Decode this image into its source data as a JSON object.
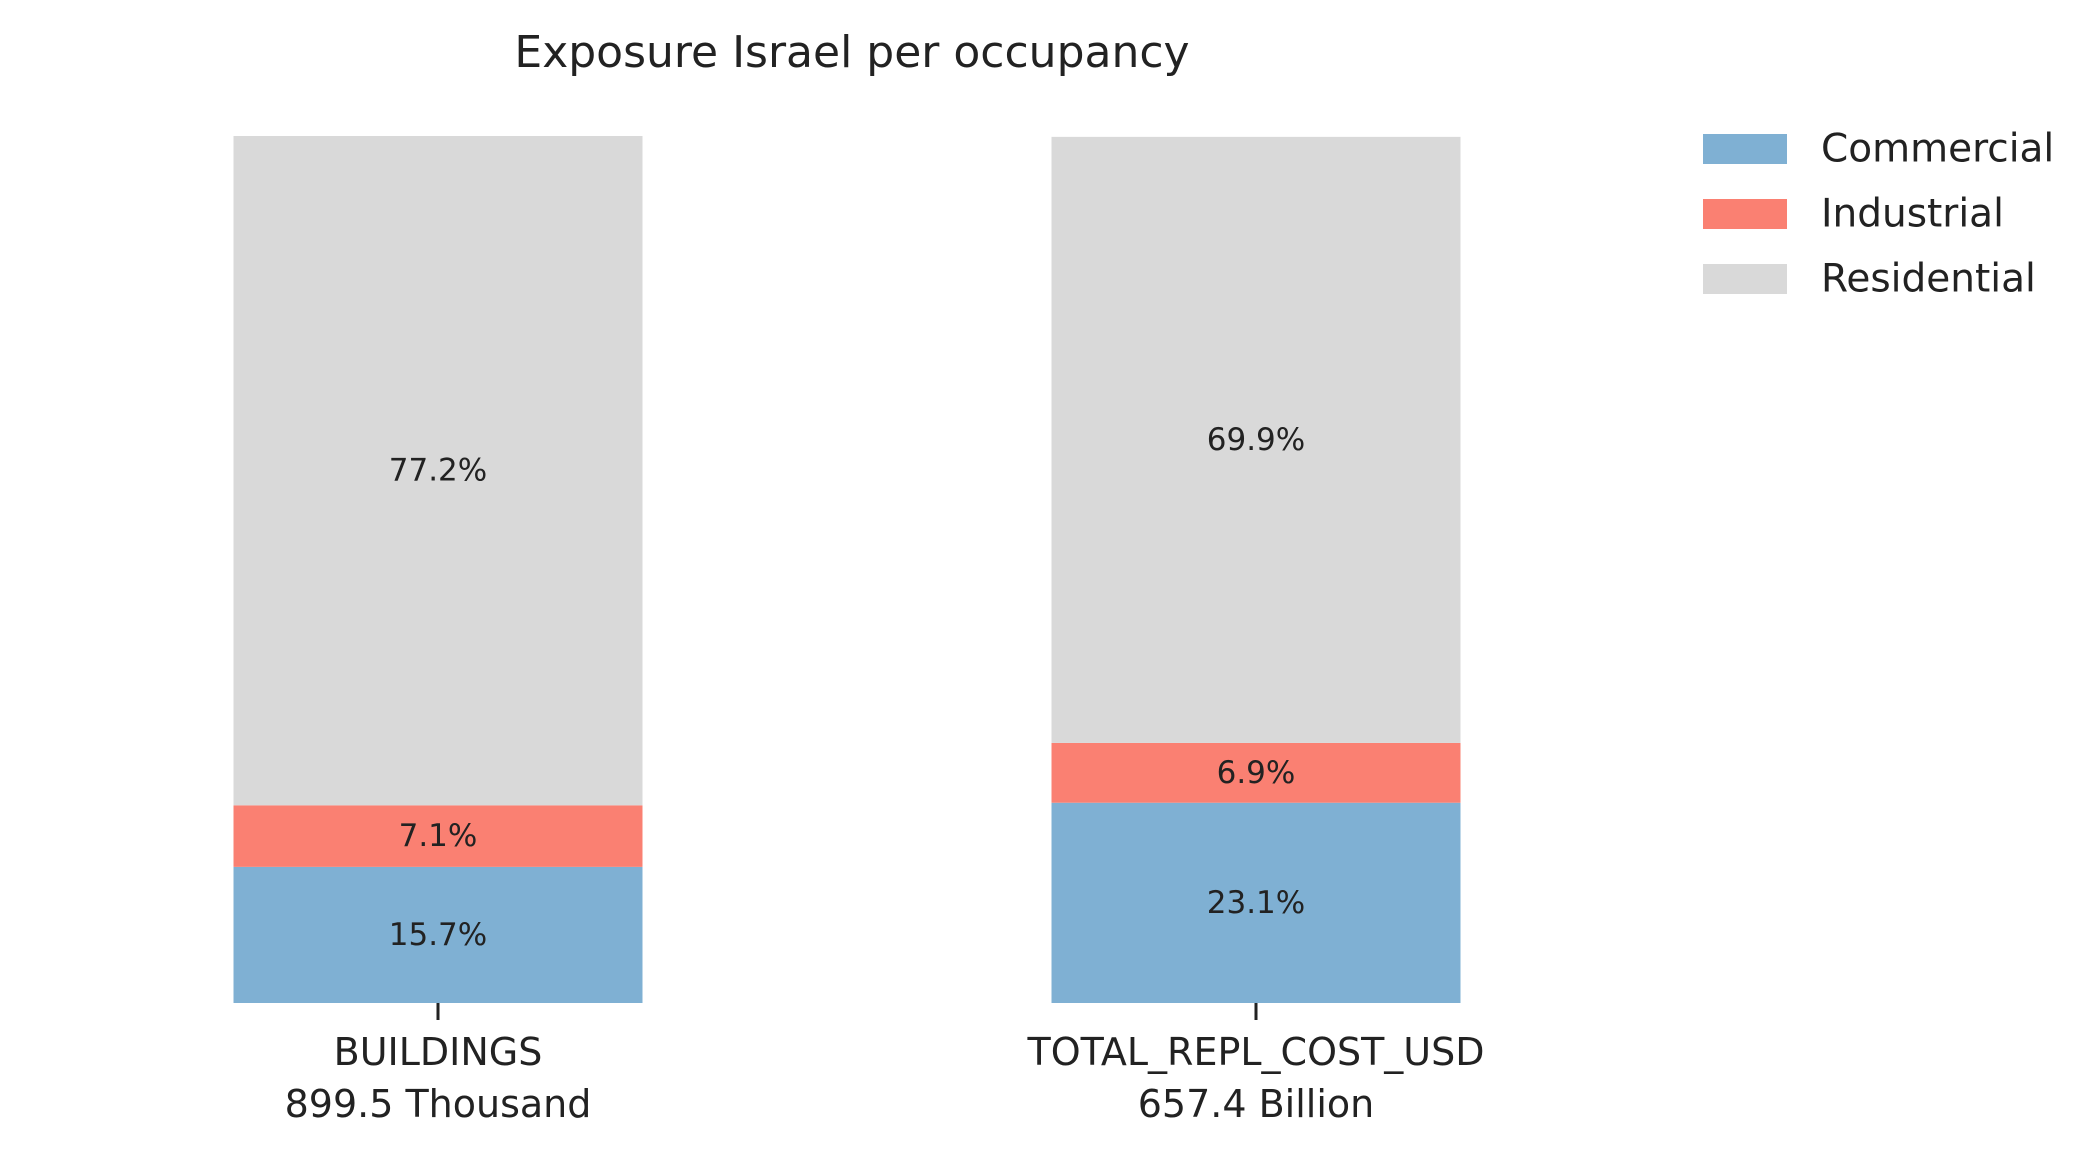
{
  "chart_data": {
    "type": "bar",
    "stacked": true,
    "title": "Exposure Israel per occupancy",
    "xlabel": "",
    "ylabel": "",
    "ylim": [
      0,
      100
    ],
    "grid": false,
    "legend_position": "top-right",
    "categories": [
      {
        "name": "BUILDINGS",
        "total": "899.5 Thousand"
      },
      {
        "name": "TOTAL_REPL_COST_USD",
        "total": "657.4 Billion"
      }
    ],
    "series": [
      {
        "name": "Commercial",
        "color": "#7fb0d3",
        "values": [
          15.7,
          23.1
        ],
        "labels": [
          "15.7%",
          "23.1%"
        ]
      },
      {
        "name": "Industrial",
        "color": "#fa8072",
        "values": [
          7.1,
          6.9
        ],
        "labels": [
          "7.1%",
          "6.9%"
        ]
      },
      {
        "name": "Residential",
        "color": "#d9d9d9",
        "values": [
          77.2,
          69.9
        ],
        "labels": [
          "77.2%",
          "69.9%"
        ]
      }
    ]
  }
}
